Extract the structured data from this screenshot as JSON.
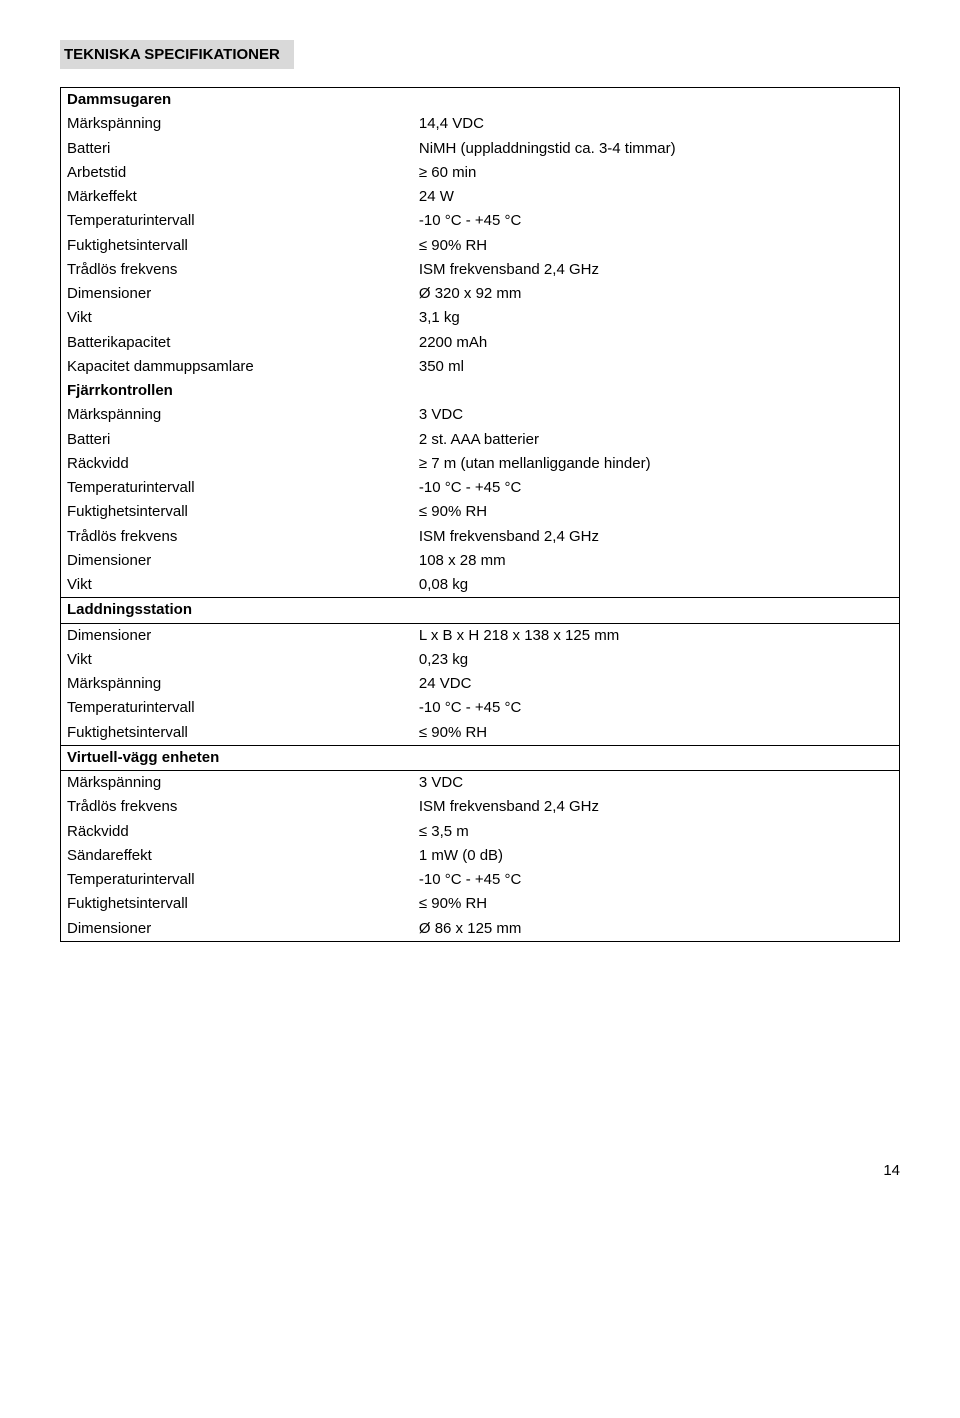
{
  "title": "TEKNISKA SPECIFIKATIONER",
  "dammsugaren": {
    "heading": "Dammsugaren",
    "rows": [
      {
        "label": "Märkspänning",
        "value": "14,4 VDC"
      },
      {
        "label": "Batteri",
        "value": "NiMH (uppladdningstid ca. 3-4 timmar)"
      },
      {
        "label": "Arbetstid",
        "value": "≥ 60 min"
      },
      {
        "label": "Märkeffekt",
        "value": "24 W"
      },
      {
        "label": "Temperaturintervall",
        "value": "-10 °C - +45 °C"
      },
      {
        "label": "Fuktighetsintervall",
        "value": "≤ 90% RH"
      },
      {
        "label": "Trådlös frekvens",
        "value": "ISM frekvensband 2,4 GHz"
      },
      {
        "label": "Dimensioner",
        "value": "Ø 320 x 92 mm"
      },
      {
        "label": "Vikt",
        "value": "3,1 kg"
      },
      {
        "label": "Batterikapacitet",
        "value": "2200 mAh"
      },
      {
        "label": "Kapacitet dammuppsamlare",
        "value": "350 ml"
      }
    ]
  },
  "fjarrkontrollen": {
    "heading": "Fjärrkontrollen",
    "rows": [
      {
        "label": "Märkspänning",
        "value": "3 VDC"
      },
      {
        "label": "Batteri",
        "value": "2 st. AAA batterier"
      },
      {
        "label": "Räckvidd",
        "value": "≥ 7 m (utan mellanliggande hinder)"
      },
      {
        "label": "Temperaturintervall",
        "value": "-10 °C - +45 °C"
      },
      {
        "label": "Fuktighetsintervall",
        "value": "≤ 90% RH"
      },
      {
        "label": "Trådlös frekvens",
        "value": "ISM frekvensband 2,4 GHz"
      },
      {
        "label": "Dimensioner",
        "value": "108 x 28 mm"
      },
      {
        "label": "Vikt",
        "value": "0,08 kg"
      }
    ]
  },
  "laddningsstation": {
    "heading": "Laddningsstation",
    "rows": [
      {
        "label": "Dimensioner",
        "value": "L x B x H  218 x 138 x 125 mm"
      },
      {
        "label": "Vikt",
        "value": "0,23 kg"
      },
      {
        "label": "Märkspänning",
        "value": "24 VDC"
      },
      {
        "label": "Temperaturintervall",
        "value": "-10 °C - +45 °C"
      },
      {
        "label": "Fuktighetsintervall",
        "value": "≤ 90% RH"
      }
    ]
  },
  "virtuellvagg": {
    "heading": "Virtuell-vägg enheten",
    "rows": [
      {
        "label": "Märkspänning",
        "value": "3 VDC"
      },
      {
        "label": "Trådlös frekvens",
        "value": "ISM frekvensband 2,4 GHz"
      },
      {
        "label": "Räckvidd",
        "value": "≤ 3,5 m"
      },
      {
        "label": "Sändareffekt",
        "value": "1 mW (0 dB)"
      },
      {
        "label": "Temperaturintervall",
        "value": "-10 °C - +45 °C"
      },
      {
        "label": "Fuktighetsintervall",
        "value": "≤ 90% RH"
      },
      {
        "label": "Dimensioner",
        "value": "Ø 86 x 125 mm"
      }
    ]
  },
  "page_number": "14"
}
